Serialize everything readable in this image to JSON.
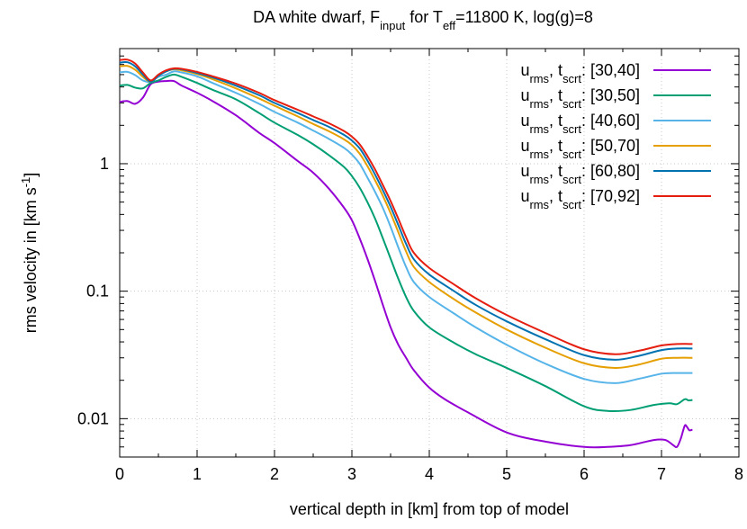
{
  "chart_data": {
    "type": "line",
    "title_parts": [
      {
        "t": "DA white dwarf, F"
      },
      {
        "t": "input",
        "sub": true
      },
      {
        "t": " for T"
      },
      {
        "t": "eff",
        "sub": true
      },
      {
        "t": "=11800 K, log(g)=8"
      }
    ],
    "xlabel": "vertical depth in [km] from top of model",
    "ylabel_parts": [
      {
        "t": "rms velocity in [km s"
      },
      {
        "t": "-1",
        "sup": true
      },
      {
        "t": "]"
      }
    ],
    "x_scale": "linear",
    "y_scale": "log",
    "xlim": [
      0,
      8
    ],
    "ylim": [
      0.005,
      8
    ],
    "x_ticks": [
      0,
      1,
      2,
      3,
      4,
      5,
      6,
      7,
      8
    ],
    "x_tick_labels": [
      "0",
      "1",
      "2",
      "3",
      "4",
      "5",
      "6",
      "7",
      "8"
    ],
    "y_ticks": [
      0.01,
      0.1,
      1
    ],
    "y_tick_labels": [
      "0.01",
      "0.1",
      "1"
    ],
    "grid": true,
    "legend_position": "top-right",
    "series": [
      {
        "legend_parts": [
          {
            "t": "u"
          },
          {
            "t": "rms",
            "sub": true
          },
          {
            "t": ", t"
          },
          {
            "t": "scrt",
            "sub": true
          },
          {
            "t": ": [30,40]"
          }
        ],
        "color": "#9400d3",
        "points": [
          [
            0.0,
            3.05
          ],
          [
            0.1,
            3.1
          ],
          [
            0.2,
            2.95
          ],
          [
            0.3,
            3.3
          ],
          [
            0.4,
            4.2
          ],
          [
            0.5,
            4.4
          ],
          [
            0.6,
            4.45
          ],
          [
            0.7,
            4.45
          ],
          [
            0.8,
            4.1
          ],
          [
            1.0,
            3.6
          ],
          [
            1.2,
            3.1
          ],
          [
            1.5,
            2.4
          ],
          [
            1.8,
            1.75
          ],
          [
            2.0,
            1.45
          ],
          [
            2.3,
            1.05
          ],
          [
            2.5,
            0.85
          ],
          [
            2.7,
            0.64
          ],
          [
            2.9,
            0.45
          ],
          [
            3.0,
            0.36
          ],
          [
            3.1,
            0.26
          ],
          [
            3.2,
            0.18
          ],
          [
            3.3,
            0.12
          ],
          [
            3.4,
            0.078
          ],
          [
            3.5,
            0.052
          ],
          [
            3.6,
            0.038
          ],
          [
            3.7,
            0.03
          ],
          [
            3.8,
            0.024
          ],
          [
            4.0,
            0.0175
          ],
          [
            4.2,
            0.0142
          ],
          [
            4.5,
            0.0112
          ],
          [
            5.0,
            0.0078
          ],
          [
            5.5,
            0.0066
          ],
          [
            6.0,
            0.006
          ],
          [
            6.3,
            0.006
          ],
          [
            6.6,
            0.0062
          ],
          [
            6.9,
            0.0068
          ],
          [
            7.05,
            0.0068
          ],
          [
            7.15,
            0.0062
          ],
          [
            7.2,
            0.006
          ],
          [
            7.25,
            0.007
          ],
          [
            7.3,
            0.0088
          ],
          [
            7.33,
            0.0086
          ],
          [
            7.36,
            0.0081
          ],
          [
            7.4,
            0.0082
          ]
        ]
      },
      {
        "legend_parts": [
          {
            "t": "u"
          },
          {
            "t": "rms",
            "sub": true
          },
          {
            "t": ", t"
          },
          {
            "t": "scrt",
            "sub": true
          },
          {
            "t": ": [30,50]"
          }
        ],
        "color": "#009e73",
        "points": [
          [
            0.0,
            4.1
          ],
          [
            0.1,
            4.15
          ],
          [
            0.2,
            3.95
          ],
          [
            0.3,
            3.9
          ],
          [
            0.4,
            4.3
          ],
          [
            0.5,
            4.5
          ],
          [
            0.6,
            4.8
          ],
          [
            0.7,
            5.0
          ],
          [
            0.8,
            4.8
          ],
          [
            1.0,
            4.3
          ],
          [
            1.2,
            3.8
          ],
          [
            1.5,
            3.2
          ],
          [
            1.8,
            2.5
          ],
          [
            2.0,
            2.1
          ],
          [
            2.3,
            1.68
          ],
          [
            2.5,
            1.42
          ],
          [
            2.7,
            1.17
          ],
          [
            2.9,
            0.94
          ],
          [
            3.0,
            0.8
          ],
          [
            3.1,
            0.65
          ],
          [
            3.2,
            0.5
          ],
          [
            3.3,
            0.37
          ],
          [
            3.4,
            0.26
          ],
          [
            3.5,
            0.18
          ],
          [
            3.6,
            0.125
          ],
          [
            3.7,
            0.09
          ],
          [
            3.8,
            0.07
          ],
          [
            4.0,
            0.052
          ],
          [
            4.3,
            0.04
          ],
          [
            4.6,
            0.032
          ],
          [
            5.0,
            0.025
          ],
          [
            5.5,
            0.018
          ],
          [
            6.0,
            0.0125
          ],
          [
            6.3,
            0.0115
          ],
          [
            6.6,
            0.0117
          ],
          [
            6.9,
            0.0128
          ],
          [
            7.1,
            0.0132
          ],
          [
            7.2,
            0.013
          ],
          [
            7.3,
            0.0142
          ],
          [
            7.35,
            0.0139
          ],
          [
            7.4,
            0.014
          ]
        ]
      },
      {
        "legend_parts": [
          {
            "t": "u"
          },
          {
            "t": "rms",
            "sub": true
          },
          {
            "t": ", t"
          },
          {
            "t": "scrt",
            "sub": true
          },
          {
            "t": ": [40,60]"
          }
        ],
        "color": "#56b4e9",
        "points": [
          [
            0.0,
            5.2
          ],
          [
            0.1,
            5.25
          ],
          [
            0.2,
            4.95
          ],
          [
            0.3,
            4.5
          ],
          [
            0.4,
            4.4
          ],
          [
            0.5,
            4.8
          ],
          [
            0.6,
            5.0
          ],
          [
            0.7,
            5.3
          ],
          [
            0.8,
            5.2
          ],
          [
            1.0,
            4.85
          ],
          [
            1.2,
            4.3
          ],
          [
            1.5,
            3.6
          ],
          [
            1.8,
            2.95
          ],
          [
            2.0,
            2.55
          ],
          [
            2.3,
            2.1
          ],
          [
            2.5,
            1.82
          ],
          [
            2.7,
            1.57
          ],
          [
            2.9,
            1.33
          ],
          [
            3.0,
            1.18
          ],
          [
            3.1,
            1.0
          ],
          [
            3.2,
            0.78
          ],
          [
            3.3,
            0.6
          ],
          [
            3.4,
            0.45
          ],
          [
            3.5,
            0.32
          ],
          [
            3.6,
            0.22
          ],
          [
            3.7,
            0.155
          ],
          [
            3.8,
            0.118
          ],
          [
            4.0,
            0.09
          ],
          [
            4.3,
            0.068
          ],
          [
            4.6,
            0.052
          ],
          [
            5.0,
            0.038
          ],
          [
            5.5,
            0.027
          ],
          [
            6.0,
            0.0205
          ],
          [
            6.4,
            0.019
          ],
          [
            6.7,
            0.0205
          ],
          [
            7.0,
            0.0225
          ],
          [
            7.2,
            0.0228
          ],
          [
            7.4,
            0.0228
          ]
        ]
      },
      {
        "legend_parts": [
          {
            "t": "u"
          },
          {
            "t": "rms",
            "sub": true
          },
          {
            "t": ", t"
          },
          {
            "t": "scrt",
            "sub": true
          },
          {
            "t": ": [50,70]"
          }
        ],
        "color": "#e69f00",
        "points": [
          [
            0.0,
            5.8
          ],
          [
            0.1,
            5.85
          ],
          [
            0.2,
            5.45
          ],
          [
            0.3,
            4.8
          ],
          [
            0.4,
            4.4
          ],
          [
            0.5,
            4.9
          ],
          [
            0.6,
            5.3
          ],
          [
            0.7,
            5.5
          ],
          [
            0.8,
            5.4
          ],
          [
            1.0,
            5.05
          ],
          [
            1.2,
            4.6
          ],
          [
            1.5,
            3.9
          ],
          [
            1.8,
            3.25
          ],
          [
            2.0,
            2.85
          ],
          [
            2.3,
            2.35
          ],
          [
            2.5,
            2.05
          ],
          [
            2.7,
            1.8
          ],
          [
            2.9,
            1.55
          ],
          [
            3.0,
            1.4
          ],
          [
            3.1,
            1.2
          ],
          [
            3.2,
            0.96
          ],
          [
            3.3,
            0.74
          ],
          [
            3.4,
            0.56
          ],
          [
            3.5,
            0.41
          ],
          [
            3.6,
            0.29
          ],
          [
            3.7,
            0.205
          ],
          [
            3.8,
            0.155
          ],
          [
            4.0,
            0.118
          ],
          [
            4.3,
            0.088
          ],
          [
            4.6,
            0.068
          ],
          [
            5.0,
            0.05
          ],
          [
            5.5,
            0.036
          ],
          [
            6.0,
            0.0272
          ],
          [
            6.4,
            0.025
          ],
          [
            6.7,
            0.0265
          ],
          [
            7.0,
            0.0295
          ],
          [
            7.2,
            0.03
          ],
          [
            7.4,
            0.03
          ]
        ]
      },
      {
        "legend_parts": [
          {
            "t": "u"
          },
          {
            "t": "rms",
            "sub": true
          },
          {
            "t": ", t"
          },
          {
            "t": "scrt",
            "sub": true
          },
          {
            "t": ": [60,80]"
          }
        ],
        "color": "#0072b2",
        "points": [
          [
            0.0,
            6.2
          ],
          [
            0.1,
            6.25
          ],
          [
            0.2,
            5.8
          ],
          [
            0.3,
            5.0
          ],
          [
            0.4,
            4.4
          ],
          [
            0.5,
            4.9
          ],
          [
            0.6,
            5.3
          ],
          [
            0.7,
            5.55
          ],
          [
            0.8,
            5.5
          ],
          [
            1.0,
            5.15
          ],
          [
            1.2,
            4.75
          ],
          [
            1.5,
            4.1
          ],
          [
            1.8,
            3.45
          ],
          [
            2.0,
            3.0
          ],
          [
            2.3,
            2.5
          ],
          [
            2.5,
            2.2
          ],
          [
            2.7,
            1.95
          ],
          [
            2.9,
            1.68
          ],
          [
            3.0,
            1.52
          ],
          [
            3.1,
            1.32
          ],
          [
            3.2,
            1.06
          ],
          [
            3.3,
            0.82
          ],
          [
            3.4,
            0.62
          ],
          [
            3.5,
            0.46
          ],
          [
            3.6,
            0.33
          ],
          [
            3.7,
            0.235
          ],
          [
            3.8,
            0.178
          ],
          [
            4.0,
            0.135
          ],
          [
            4.3,
            0.102
          ],
          [
            4.6,
            0.078
          ],
          [
            5.0,
            0.058
          ],
          [
            5.5,
            0.042
          ],
          [
            6.0,
            0.0315
          ],
          [
            6.4,
            0.029
          ],
          [
            6.7,
            0.031
          ],
          [
            7.0,
            0.0345
          ],
          [
            7.2,
            0.0355
          ],
          [
            7.4,
            0.0355
          ]
        ]
      },
      {
        "legend_parts": [
          {
            "t": "u"
          },
          {
            "t": "rms",
            "sub": true
          },
          {
            "t": ", t"
          },
          {
            "t": "scrt",
            "sub": true
          },
          {
            "t": ": [70,92]"
          }
        ],
        "color": "#e51e10",
        "points": [
          [
            0.0,
            6.5
          ],
          [
            0.1,
            6.55
          ],
          [
            0.2,
            6.1
          ],
          [
            0.3,
            5.2
          ],
          [
            0.4,
            4.5
          ],
          [
            0.5,
            5.0
          ],
          [
            0.6,
            5.4
          ],
          [
            0.7,
            5.6
          ],
          [
            0.8,
            5.55
          ],
          [
            1.0,
            5.25
          ],
          [
            1.2,
            4.85
          ],
          [
            1.5,
            4.25
          ],
          [
            1.8,
            3.6
          ],
          [
            2.0,
            3.15
          ],
          [
            2.3,
            2.65
          ],
          [
            2.5,
            2.35
          ],
          [
            2.7,
            2.08
          ],
          [
            2.9,
            1.8
          ],
          [
            3.0,
            1.63
          ],
          [
            3.1,
            1.42
          ],
          [
            3.2,
            1.15
          ],
          [
            3.3,
            0.9
          ],
          [
            3.4,
            0.68
          ],
          [
            3.5,
            0.51
          ],
          [
            3.6,
            0.37
          ],
          [
            3.7,
            0.265
          ],
          [
            3.8,
            0.2
          ],
          [
            4.0,
            0.152
          ],
          [
            4.3,
            0.115
          ],
          [
            4.6,
            0.088
          ],
          [
            5.0,
            0.065
          ],
          [
            5.5,
            0.047
          ],
          [
            6.0,
            0.035
          ],
          [
            6.4,
            0.032
          ],
          [
            6.7,
            0.034
          ],
          [
            7.0,
            0.0375
          ],
          [
            7.2,
            0.0385
          ],
          [
            7.4,
            0.0385
          ]
        ]
      }
    ]
  }
}
